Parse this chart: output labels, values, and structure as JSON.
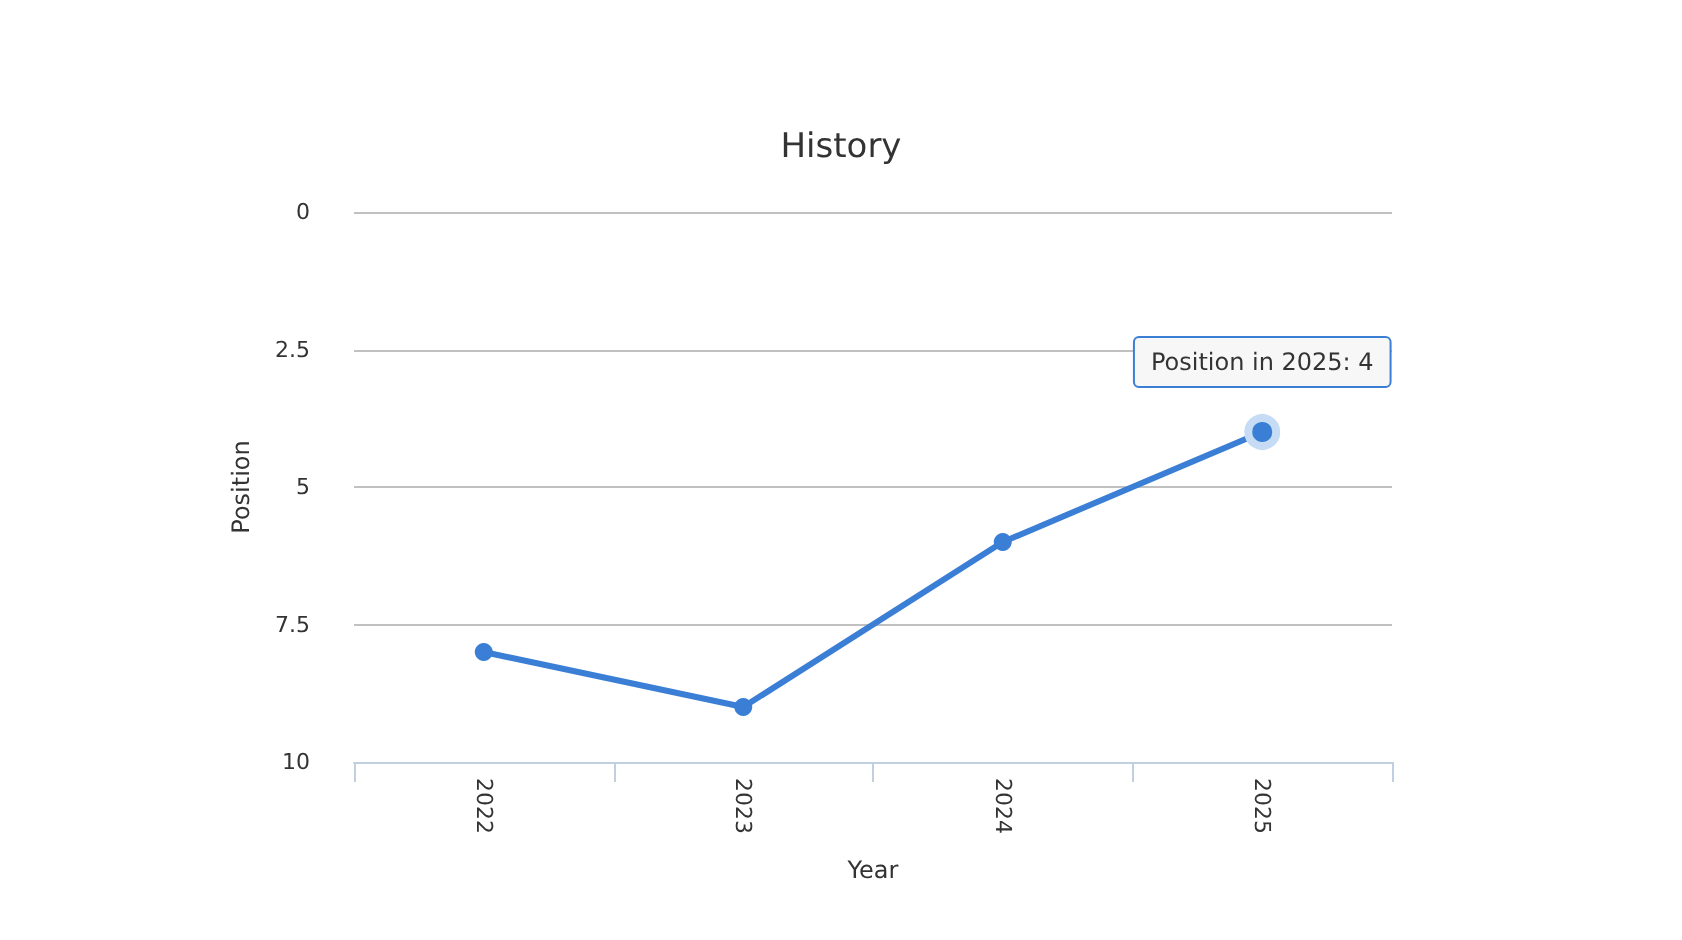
{
  "chart_data": {
    "type": "line",
    "title": "History",
    "xlabel": "Year",
    "ylabel": "Position",
    "categories": [
      "2022",
      "2023",
      "2024",
      "2025"
    ],
    "series": [
      {
        "color": "#3a7fd5",
        "values": [
          8,
          9,
          6,
          4
        ]
      }
    ],
    "ylim": [
      10,
      0
    ],
    "yticks": [
      0,
      2.5,
      5,
      7.5,
      10
    ],
    "grid": "y",
    "marker": "circle",
    "line_style": "solid",
    "annotations": [
      {
        "text": "Position in 2025: 4",
        "x": "2025",
        "y": 4
      }
    ]
  }
}
